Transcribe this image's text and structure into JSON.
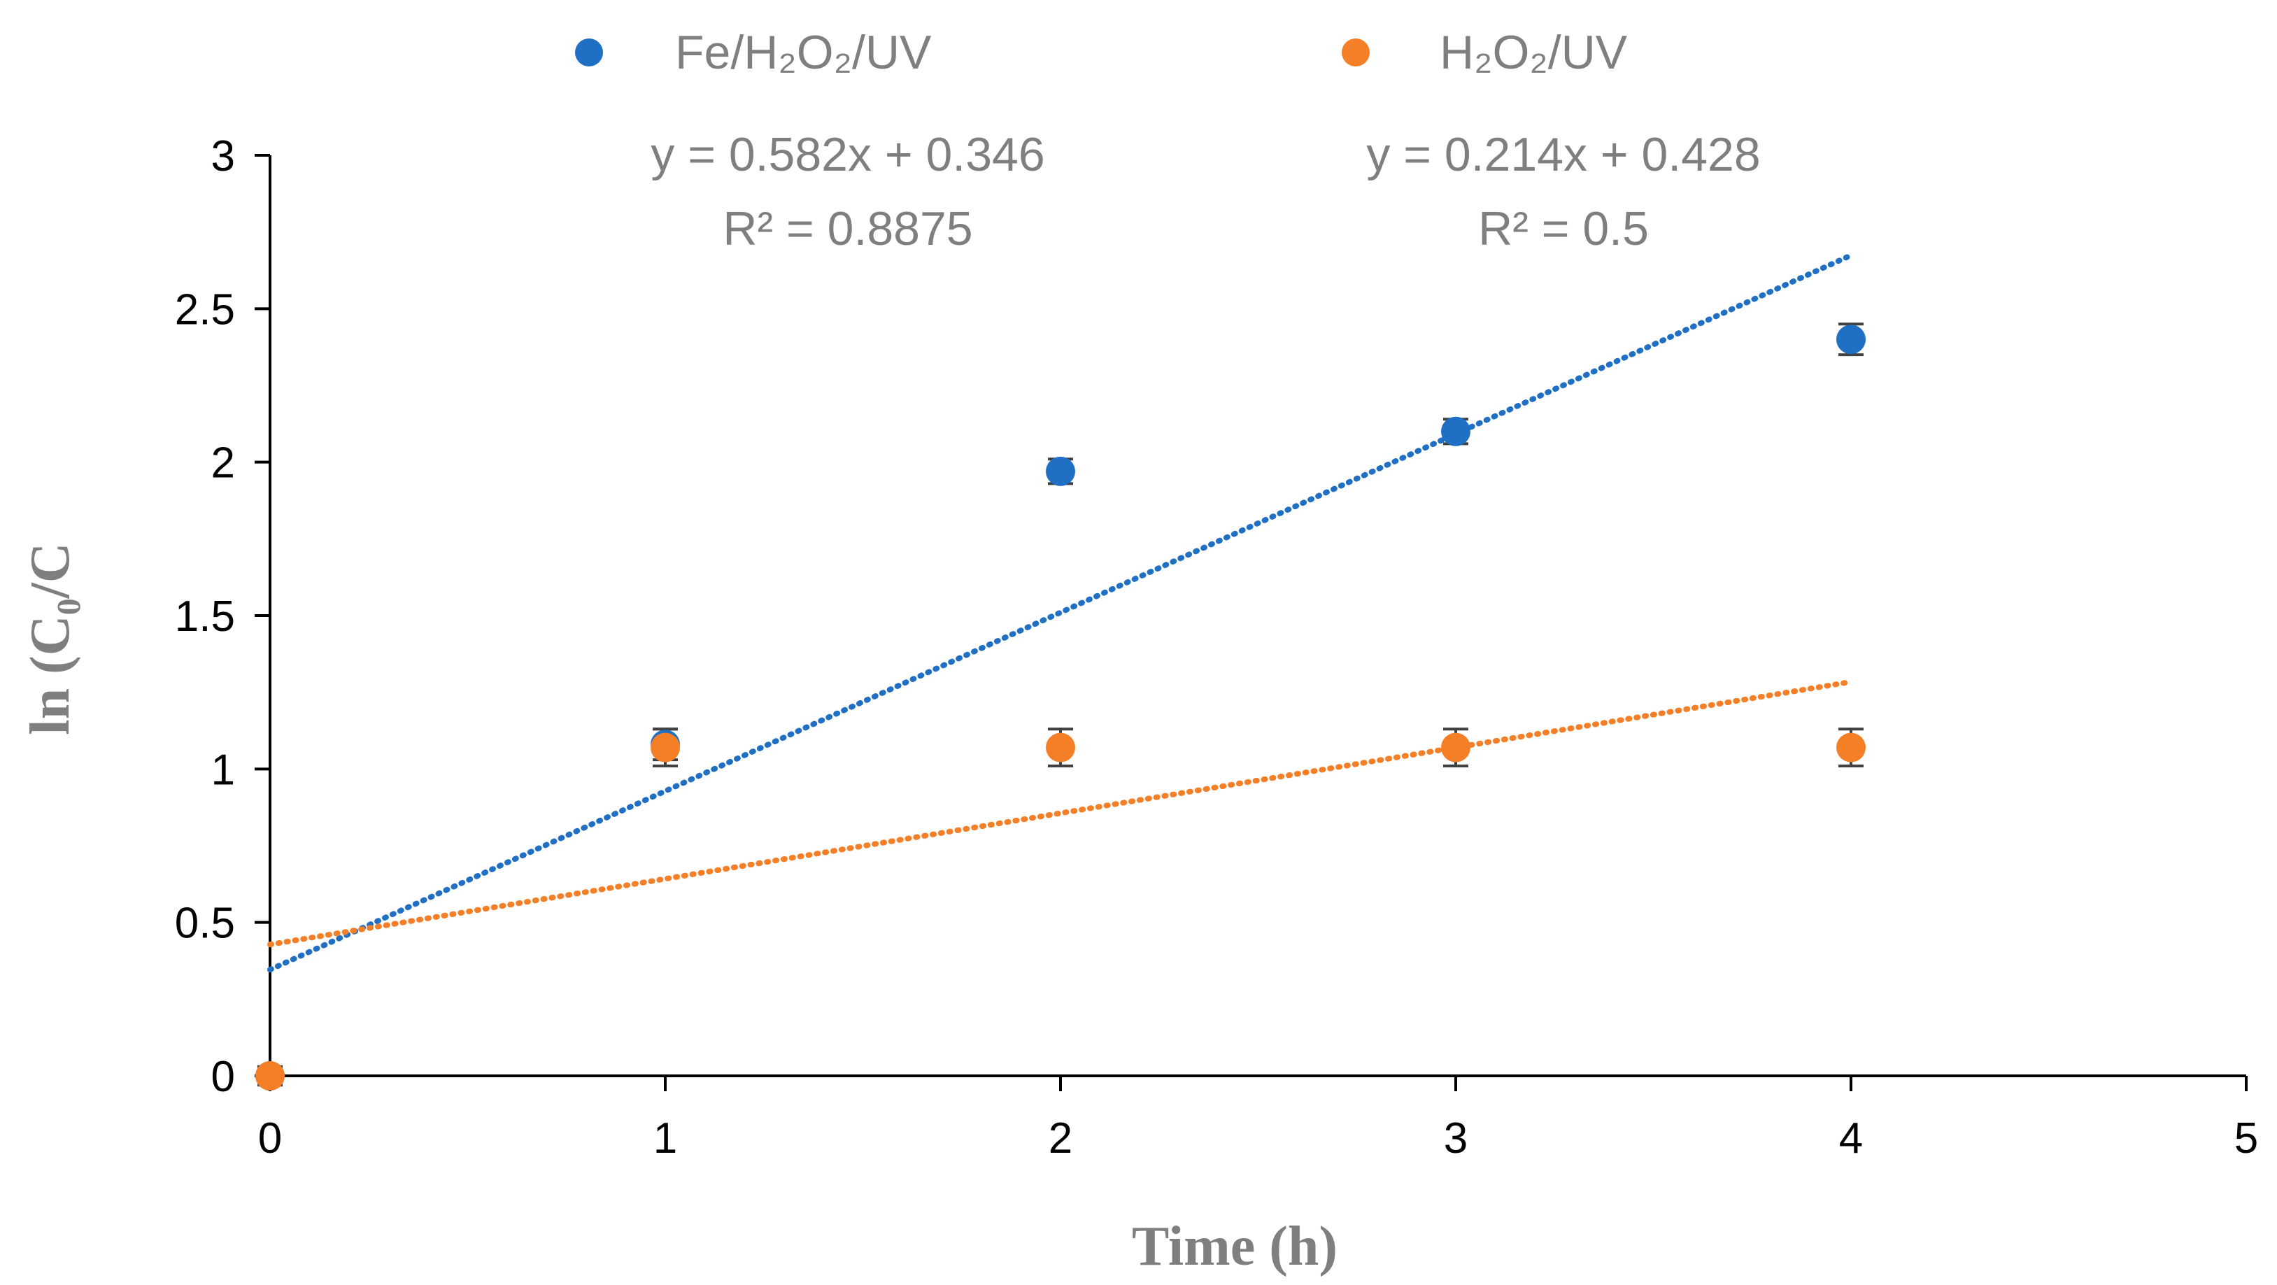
{
  "chart_data": {
    "type": "scatter",
    "title": "",
    "xlabel": "Time (h)",
    "ylabel": "ln (C₀/C",
    "xlim": [
      0,
      5
    ],
    "ylim": [
      0,
      3
    ],
    "xticks": [
      "0",
      "1",
      "2",
      "3",
      "4",
      "5"
    ],
    "yticks": [
      "0",
      "0.5",
      "1",
      "1.5",
      "2",
      "2.5",
      "3"
    ],
    "legend_position": "top",
    "series": [
      {
        "name": "Fe/H₂O₂/UV",
        "color": "#1f6fc5",
        "x": [
          0,
          1,
          2,
          3,
          4
        ],
        "y": [
          0,
          1.08,
          1.97,
          2.1,
          2.4
        ],
        "error": [
          0.03,
          0.05,
          0.04,
          0.04,
          0.05
        ],
        "trendline": {
          "slope": 0.582,
          "intercept": 0.346,
          "x_range": [
            0,
            4
          ],
          "equation": "y = 0.582x + 0.346",
          "r2": "R² = 0.8875"
        }
      },
      {
        "name": "H₂O₂/UV",
        "color": "#f57f26",
        "x": [
          0,
          1,
          2,
          3,
          4
        ],
        "y": [
          0,
          1.07,
          1.07,
          1.07,
          1.07
        ],
        "error": [
          0.03,
          0.06,
          0.06,
          0.06,
          0.06
        ],
        "trendline": {
          "slope": 0.214,
          "intercept": 0.428,
          "x_range": [
            0,
            4
          ],
          "equation": "y = 0.214x + 0.428",
          "r2": "R² = 0.5"
        }
      }
    ]
  }
}
